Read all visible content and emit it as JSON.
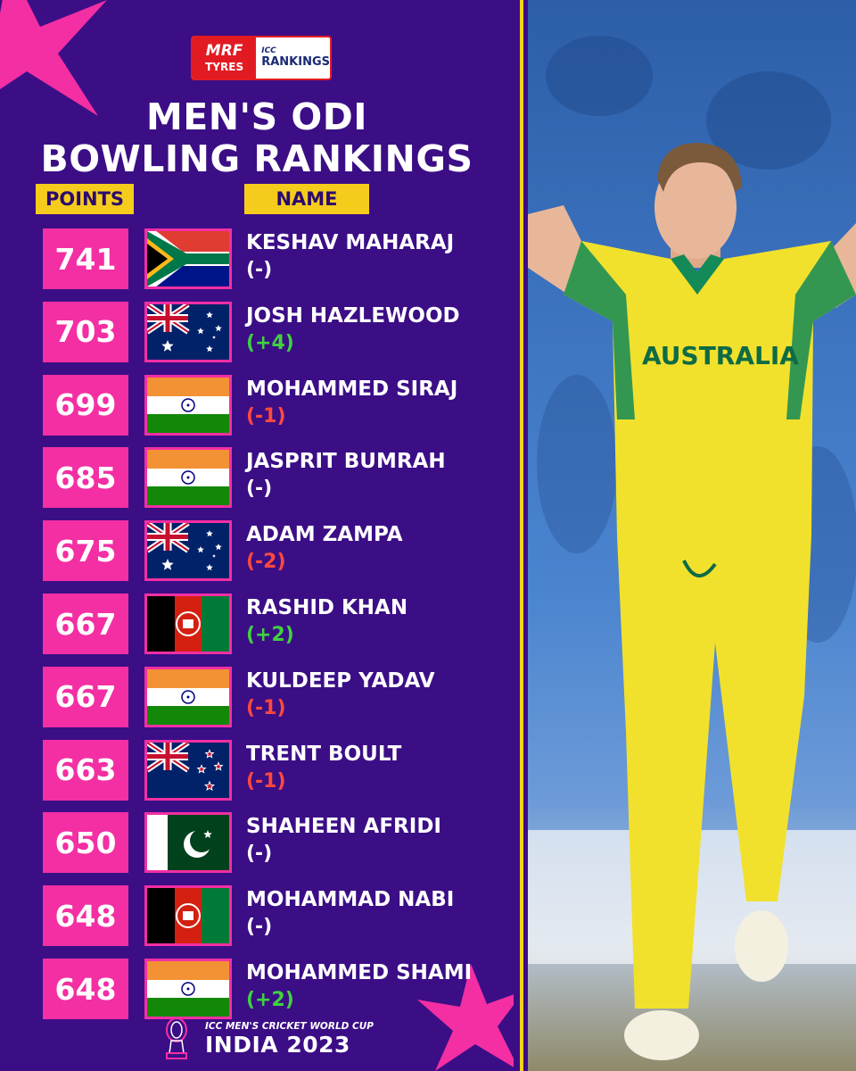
{
  "sponsor": {
    "brand_top": "MRF",
    "brand_bottom": "TYRES",
    "icc_top": "ICC",
    "icc_bottom": "RANKINGS"
  },
  "title": {
    "line1": "MEN'S ODI",
    "line2": "BOWLING RANKINGS"
  },
  "headers": {
    "points": "POINTS",
    "name": "NAME"
  },
  "colors": {
    "background": "#3b0e86",
    "points_box": "#f32fa3",
    "header": "#f6cc1c",
    "accent_divider": "#f3d31a",
    "change_up": "#3fd23f",
    "change_down": "#ff4a3d"
  },
  "rankings": [
    {
      "points": "741",
      "name": "KESHAV MAHARAJ",
      "change": "(-)",
      "trend": "none",
      "flag": "south-africa-flag"
    },
    {
      "points": "703",
      "name": "JOSH HAZLEWOOD",
      "change": "(+4)",
      "trend": "up",
      "flag": "australia-flag"
    },
    {
      "points": "699",
      "name": "MOHAMMED SIRAJ",
      "change": "(-1)",
      "trend": "down",
      "flag": "india-flag"
    },
    {
      "points": "685",
      "name": "JASPRIT BUMRAH",
      "change": "(-)",
      "trend": "none",
      "flag": "india-flag"
    },
    {
      "points": "675",
      "name": "ADAM ZAMPA",
      "change": "(-2)",
      "trend": "down",
      "flag": "australia-flag"
    },
    {
      "points": "667",
      "name": "RASHID KHAN",
      "change": "(+2)",
      "trend": "up",
      "flag": "afghanistan-flag"
    },
    {
      "points": "667",
      "name": "KULDEEP YADAV",
      "change": "(-1)",
      "trend": "down",
      "flag": "india-flag"
    },
    {
      "points": "663",
      "name": "TRENT BOULT",
      "change": "(-1)",
      "trend": "down",
      "flag": "new-zealand-flag"
    },
    {
      "points": "650",
      "name": "SHAHEEN AFRIDI",
      "change": "(-)",
      "trend": "none",
      "flag": "pakistan-flag"
    },
    {
      "points": "648",
      "name": "MOHAMMAD NABI",
      "change": "(-)",
      "trend": "none",
      "flag": "afghanistan-flag"
    },
    {
      "points": "648",
      "name": "MOHAMMED SHAMI",
      "change": "(+2)",
      "trend": "up",
      "flag": "india-flag"
    }
  ],
  "footer": {
    "line1": "ICC MEN'S CRICKET WORLD CUP",
    "line2": "INDIA 2023"
  },
  "photo": {
    "jersey_text": "AUSTRALIA"
  }
}
